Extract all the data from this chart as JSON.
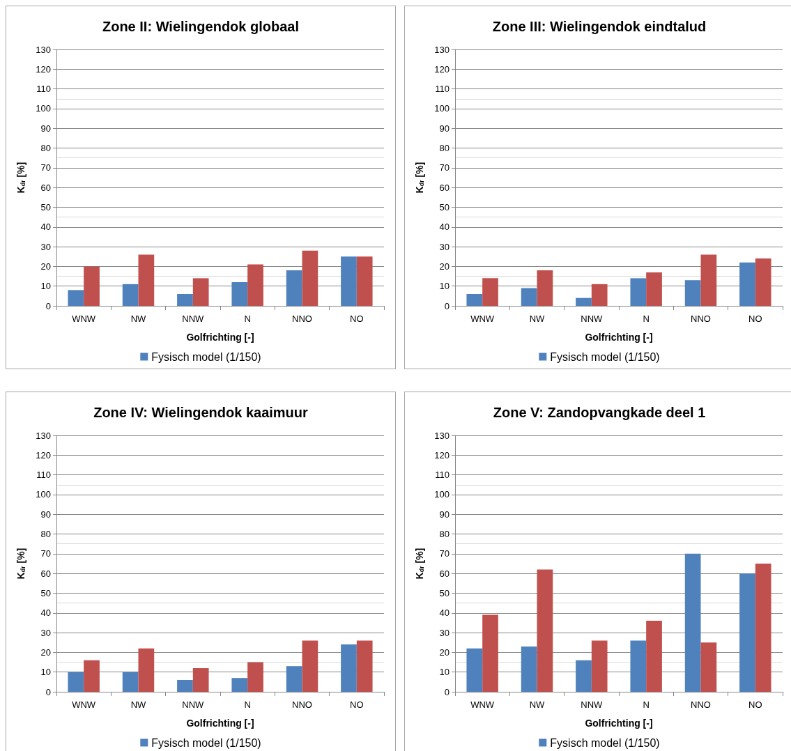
{
  "chart_data": [
    {
      "type": "bar",
      "title": "Zone II: Wielingendok globaal",
      "xlabel": "Golfrichting [-]",
      "ylabel": "K$_{dr}$ [%]",
      "categories": [
        "WNW",
        "NW",
        "NNW",
        "N",
        "NNO",
        "NO"
      ],
      "ylim": [
        0,
        130
      ],
      "yticks": [
        0,
        10,
        20,
        30,
        40,
        50,
        60,
        70,
        80,
        90,
        100,
        110,
        120,
        130
      ],
      "grid": true,
      "legend": "bottom",
      "series": [
        {
          "name": "Fysisch model (1/150)",
          "color": "#4f81bd",
          "values": [
            8,
            11,
            6,
            12,
            18,
            25
          ]
        },
        {
          "color": "#c0504d",
          "values": [
            20,
            26,
            14,
            21,
            28,
            25
          ]
        }
      ]
    },
    {
      "type": "bar",
      "title": "Zone III: Wielingendok eindtalud",
      "xlabel": "Golfrichting [-]",
      "ylabel": "K$_{dr}$ [%]",
      "categories": [
        "WNW",
        "NW",
        "NNW",
        "N",
        "NNO",
        "NO"
      ],
      "ylim": [
        0,
        130
      ],
      "yticks": [
        0,
        10,
        20,
        30,
        40,
        50,
        60,
        70,
        80,
        90,
        100,
        110,
        120,
        130
      ],
      "grid": true,
      "legend": "bottom",
      "series": [
        {
          "name": "Fysisch model (1/150)",
          "color": "#4f81bd",
          "values": [
            6,
            9,
            4,
            14,
            13,
            22
          ]
        },
        {
          "color": "#c0504d",
          "values": [
            14,
            18,
            11,
            17,
            26,
            24
          ]
        }
      ]
    },
    {
      "type": "bar",
      "title": "Zone IV: Wielingendok kaaimuur",
      "xlabel": "Golfrichting [-]",
      "ylabel": "K$_{dr}$ [%]",
      "categories": [
        "WNW",
        "NW",
        "NNW",
        "N",
        "NNO",
        "NO"
      ],
      "ylim": [
        0,
        130
      ],
      "yticks": [
        0,
        10,
        20,
        30,
        40,
        50,
        60,
        70,
        80,
        90,
        100,
        110,
        120,
        130
      ],
      "grid": true,
      "legend": "bottom",
      "series": [
        {
          "name": "Fysisch model (1/150)",
          "color": "#4f81bd",
          "values": [
            10,
            10,
            6,
            7,
            13,
            24
          ]
        },
        {
          "color": "#c0504d",
          "values": [
            16,
            22,
            12,
            15,
            26,
            26
          ]
        }
      ]
    },
    {
      "type": "bar",
      "title": "Zone V: Zandopvangkade deel 1",
      "xlabel": "Golfrichting [-]",
      "ylabel": "K$_{dr}$ [%]",
      "categories": [
        "WNW",
        "NW",
        "NNW",
        "N",
        "NNO",
        "NO"
      ],
      "ylim": [
        0,
        130
      ],
      "yticks": [
        0,
        10,
        20,
        30,
        40,
        50,
        60,
        70,
        80,
        90,
        100,
        110,
        120,
        130
      ],
      "grid": true,
      "legend": "bottom",
      "series": [
        {
          "name": "Fysisch model (1/150)",
          "color": "#4f81bd",
          "values": [
            22,
            23,
            16,
            26,
            70,
            60
          ]
        },
        {
          "color": "#c0504d",
          "values": [
            39,
            62,
            26,
            36,
            25,
            65
          ]
        }
      ]
    }
  ]
}
